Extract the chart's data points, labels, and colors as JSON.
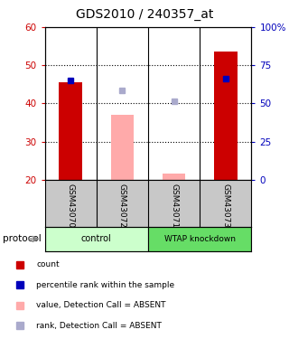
{
  "title": "GDS2010 / 240357_at",
  "samples": [
    "GSM43070",
    "GSM43072",
    "GSM43071",
    "GSM43073"
  ],
  "ylim": [
    20,
    60
  ],
  "yticks_left": [
    20,
    30,
    40,
    50,
    60
  ],
  "red_bars": [
    45.5,
    null,
    null,
    53.5
  ],
  "pink_bars": [
    null,
    37.0,
    21.5,
    null
  ],
  "blue_squares": [
    46.0,
    null,
    null,
    46.5
  ],
  "light_blue_squares": [
    null,
    43.5,
    40.5,
    null
  ],
  "red_bar_color": "#cc0000",
  "pink_bar_color": "#ffaaaa",
  "blue_sq_color": "#0000bb",
  "light_blue_sq_color": "#aaaacc",
  "label_color_left": "#cc0000",
  "label_color_right": "#0000bb",
  "right_tick_labels": [
    "0",
    "25",
    "50",
    "75",
    "100%"
  ],
  "bar_width": 0.45,
  "legend_items": [
    {
      "label": "count",
      "color": "#cc0000"
    },
    {
      "label": "percentile rank within the sample",
      "color": "#0000bb"
    },
    {
      "label": "value, Detection Call = ABSENT",
      "color": "#ffaaaa"
    },
    {
      "label": "rank, Detection Call = ABSENT",
      "color": "#aaaacc"
    }
  ],
  "sample_label_bg": "#c8c8c8",
  "group_label_control": "control",
  "group_label_wtap": "WTAP knockdown",
  "group_color_control": "#ccffcc",
  "group_color_wtap": "#66dd66",
  "protocol_label": "protocol"
}
